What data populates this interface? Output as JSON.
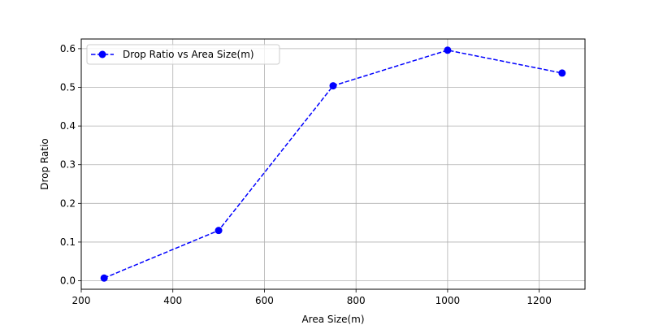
{
  "chart_data": {
    "type": "line",
    "xlabel": "Area Size(m)",
    "ylabel": "Drop Ratio",
    "xlim": [
      200,
      1300
    ],
    "ylim": [
      -0.022,
      0.625
    ],
    "xticks": [
      200,
      400,
      600,
      800,
      1000,
      1200
    ],
    "yticks": [
      0.0,
      0.1,
      0.2,
      0.3,
      0.4,
      0.5,
      0.6
    ],
    "ytick_labels": [
      "0.0",
      "0.1",
      "0.2",
      "0.3",
      "0.4",
      "0.5",
      "0.6"
    ],
    "grid": true,
    "legend_position": "upper-left",
    "series": [
      {
        "name": "Drop Ratio vs Area Size(m)",
        "color": "#0000ff",
        "line_style": "dashed",
        "marker": "circle",
        "x": [
          250,
          500,
          750,
          1000,
          1250
        ],
        "y": [
          0.007,
          0.13,
          0.504,
          0.596,
          0.537
        ]
      }
    ]
  }
}
